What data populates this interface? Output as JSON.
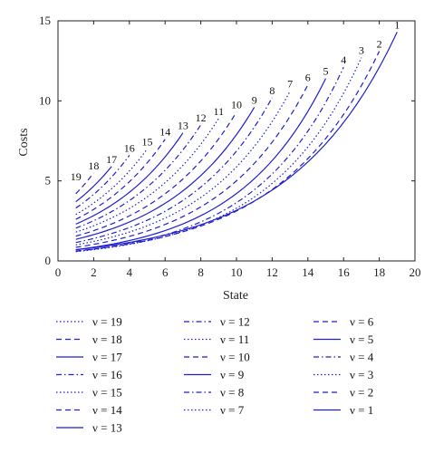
{
  "chart_data": {
    "type": "line",
    "xlabel": "State",
    "ylabel": "Costs",
    "xlim": [
      0,
      20
    ],
    "ylim": [
      0,
      15
    ],
    "xticks": [
      0,
      2,
      4,
      6,
      8,
      10,
      12,
      14,
      16,
      18,
      20
    ],
    "yticks": [
      0,
      5,
      10,
      15
    ],
    "grid": false,
    "legend_position": "below",
    "line_color": "#1f1fcf",
    "series": [
      {
        "name": "ν = 1",
        "curve_label": "1",
        "style": "solid",
        "x_end": 19,
        "y_start": 0.7,
        "y_end": 14.3
      },
      {
        "name": "ν = 2",
        "curve_label": "2",
        "style": "dashed",
        "x_end": 18,
        "y_start": 0.62,
        "y_end": 13.1
      },
      {
        "name": "ν = 3",
        "curve_label": "3",
        "style": "dotted",
        "x_end": 17,
        "y_start": 0.58,
        "y_end": 12.7
      },
      {
        "name": "ν = 4",
        "curve_label": "4",
        "style": "dashdot",
        "x_end": 16,
        "y_start": 0.6,
        "y_end": 12.1
      },
      {
        "name": "ν = 5",
        "curve_label": "5",
        "style": "solid",
        "x_end": 15,
        "y_start": 0.7,
        "y_end": 11.4
      },
      {
        "name": "ν = 6",
        "curve_label": "6",
        "style": "dashed",
        "x_end": 14,
        "y_start": 0.85,
        "y_end": 11.0
      },
      {
        "name": "ν = 7",
        "curve_label": "7",
        "style": "dotted",
        "x_end": 13,
        "y_start": 1.0,
        "y_end": 10.6
      },
      {
        "name": "ν = 8",
        "curve_label": "8",
        "style": "dashdot",
        "x_end": 12,
        "y_start": 1.15,
        "y_end": 10.2
      },
      {
        "name": "ν = 9",
        "curve_label": "9",
        "style": "solid",
        "x_end": 11,
        "y_start": 1.35,
        "y_end": 9.6
      },
      {
        "name": "ν = 10",
        "curve_label": "10",
        "style": "dashed",
        "x_end": 10,
        "y_start": 1.55,
        "y_end": 9.3
      },
      {
        "name": "ν = 11",
        "curve_label": "11",
        "style": "dotted",
        "x_end": 9,
        "y_start": 1.8,
        "y_end": 8.9
      },
      {
        "name": "ν = 12",
        "curve_label": "12",
        "style": "dashdot",
        "x_end": 8,
        "y_start": 2.05,
        "y_end": 8.5
      },
      {
        "name": "ν = 13",
        "curve_label": "13",
        "style": "solid",
        "x_end": 7,
        "y_start": 2.3,
        "y_end": 8.0
      },
      {
        "name": "ν = 14",
        "curve_label": "14",
        "style": "dashed",
        "x_end": 6,
        "y_start": 2.6,
        "y_end": 7.6
      },
      {
        "name": "ν = 15",
        "curve_label": "15",
        "style": "dotted",
        "x_end": 5,
        "y_start": 2.9,
        "y_end": 7.0
      },
      {
        "name": "ν = 16",
        "curve_label": "16",
        "style": "dashdot",
        "x_end": 4,
        "y_start": 3.3,
        "y_end": 6.6
      },
      {
        "name": "ν = 17",
        "curve_label": "17",
        "style": "solid",
        "x_end": 3,
        "y_start": 3.7,
        "y_end": 5.9
      },
      {
        "name": "ν = 18",
        "curve_label": "18",
        "style": "dashed",
        "x_end": 2,
        "y_start": 4.2,
        "y_end": 5.5
      },
      {
        "name": "ν = 19",
        "curve_label": "19",
        "style": "dotted",
        "x_end": 1,
        "y_start": 4.8,
        "y_end": 4.8
      }
    ],
    "legend_order": [
      [
        "ν = 19",
        "ν = 18",
        "ν = 17",
        "ν = 16",
        "ν = 15",
        "ν = 14",
        "ν = 13"
      ],
      [
        "ν = 12",
        "ν = 11",
        "ν = 10",
        "ν = 9",
        "ν = 8",
        "ν = 7"
      ],
      [
        "ν = 6",
        "ν = 5",
        "ν = 4",
        "ν = 3",
        "ν = 2",
        "ν = 1"
      ]
    ]
  }
}
